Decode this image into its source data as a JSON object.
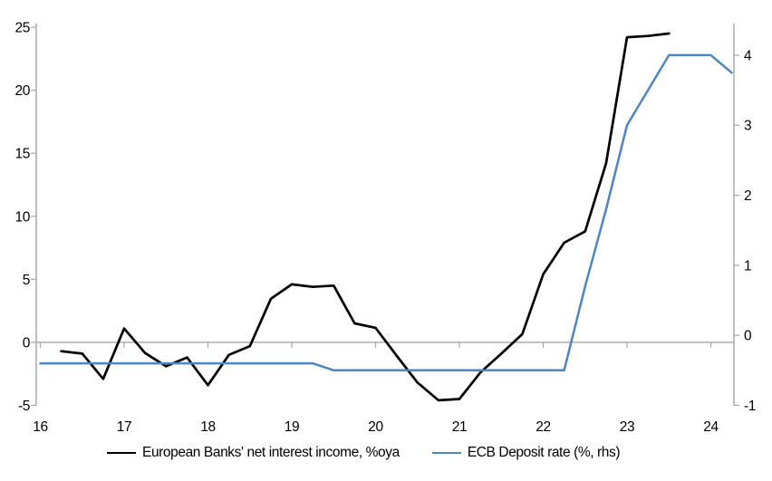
{
  "chart_data": {
    "type": "line",
    "title": "",
    "xlabel": "",
    "ylabel_left": "",
    "ylabel_right": "",
    "grid": "zero-line-only",
    "legend_position": "bottom",
    "x_axis": {
      "min": 16,
      "max": 24.28,
      "tick_values": [
        16,
        17,
        18,
        19,
        20,
        21,
        22,
        23,
        24
      ],
      "tick_labels": [
        "16",
        "17",
        "18",
        "19",
        "20",
        "21",
        "22",
        "23",
        "24"
      ]
    },
    "left_axis": {
      "min": -5,
      "max": 25,
      "tick_values": [
        -5,
        0,
        5,
        10,
        15,
        20,
        25
      ],
      "tick_labels": [
        "-5",
        "0",
        "5",
        "10",
        "15",
        "20",
        "25"
      ]
    },
    "right_axis": {
      "min": -1,
      "max": 4.4,
      "tick_values": [
        -1,
        0,
        1,
        2,
        3,
        4
      ],
      "tick_labels": [
        "-1",
        "0",
        "1",
        "2",
        "3",
        "4"
      ]
    },
    "series": [
      {
        "name": "European Banks' net interest income, %oya",
        "axis": "left",
        "color": "#000000",
        "x": [
          16.25,
          16.5,
          16.75,
          17.0,
          17.25,
          17.5,
          17.75,
          18.0,
          18.25,
          18.5,
          18.75,
          19.0,
          19.25,
          19.5,
          19.75,
          20.0,
          20.25,
          20.5,
          20.75,
          21.0,
          21.25,
          21.5,
          21.75,
          22.0,
          22.25,
          22.5,
          22.75,
          23.0,
          23.25,
          23.5
        ],
        "values": [
          -0.7,
          -0.9,
          -2.9,
          1.1,
          -0.85,
          -1.9,
          -1.2,
          -3.4,
          -1.0,
          -0.3,
          3.45,
          4.6,
          4.4,
          4.5,
          1.5,
          1.15,
          -1.05,
          -3.2,
          -4.6,
          -4.5,
          -2.4,
          -0.9,
          0.65,
          5.4,
          7.9,
          8.8,
          14.2,
          24.2,
          24.3,
          24.5
        ]
      },
      {
        "name": "ECB Deposit rate (%, rhs)",
        "axis": "right",
        "color": "#4e86c0",
        "x": [
          16.0,
          16.25,
          16.5,
          16.75,
          17.0,
          17.25,
          17.5,
          17.75,
          18.0,
          18.25,
          18.5,
          18.75,
          19.0,
          19.25,
          19.5,
          19.75,
          20.0,
          20.25,
          20.5,
          20.75,
          21.0,
          21.25,
          21.5,
          21.75,
          22.0,
          22.25,
          22.5,
          22.75,
          23.0,
          23.25,
          23.5,
          23.75,
          24.0,
          24.25
        ],
        "values": [
          -0.4,
          -0.4,
          -0.4,
          -0.4,
          -0.4,
          -0.4,
          -0.4,
          -0.4,
          -0.4,
          -0.4,
          -0.4,
          -0.4,
          -0.4,
          -0.4,
          -0.5,
          -0.5,
          -0.5,
          -0.5,
          -0.5,
          -0.5,
          -0.5,
          -0.5,
          -0.5,
          -0.5,
          -0.5,
          -0.5,
          0.7,
          1.8,
          3.0,
          3.5,
          4.0,
          4.0,
          4.0,
          3.75
        ]
      }
    ]
  },
  "legend": {
    "items": [
      {
        "label": "European Banks' net interest income, %oya",
        "color": "#000000"
      },
      {
        "label": "ECB Deposit rate (%, rhs)",
        "color": "#4e86c0"
      }
    ]
  },
  "colors": {
    "axis_gray": "#a6a6a6",
    "background": "#ffffff",
    "text": "#000000"
  }
}
